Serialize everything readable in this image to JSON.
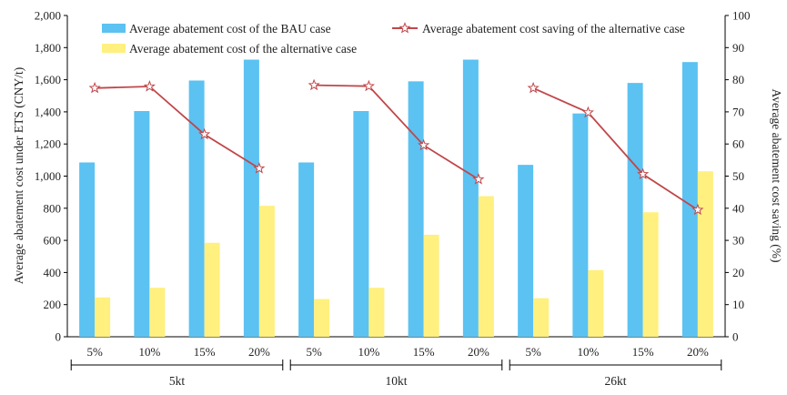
{
  "chart_data": {
    "type": "bar",
    "title": "",
    "ylabel": "Average abatement cost under ETS (CNY/t)",
    "y2label": "Average abatement cost saving (%)",
    "ylim": [
      0,
      2000
    ],
    "y2lim": [
      0,
      100
    ],
    "yticks": [
      "0",
      "200",
      "400",
      "600",
      "800",
      "1,000",
      "1,200",
      "1,400",
      "1,600",
      "1,800",
      "2,000"
    ],
    "y2ticks": [
      "0",
      "10",
      "20",
      "30",
      "40",
      "50",
      "60",
      "70",
      "80",
      "90",
      "100"
    ],
    "legend_position": "top",
    "groups": [
      {
        "label": "5kt",
        "categories": [
          "5%",
          "10%",
          "15%",
          "20%"
        ]
      },
      {
        "label": "10kt",
        "categories": [
          "5%",
          "10%",
          "15%",
          "20%"
        ]
      },
      {
        "label": "26kt",
        "categories": [
          "5%",
          "10%",
          "15%",
          "20%"
        ]
      }
    ],
    "series": [
      {
        "name": "Average abatement cost of the BAU case",
        "kind": "bar",
        "axis": "left",
        "color": "#5BC2F2",
        "values": [
          1085,
          1405,
          1595,
          1725,
          1085,
          1405,
          1590,
          1725,
          1070,
          1390,
          1580,
          1710
        ]
      },
      {
        "name": "Average abatement cost of the alternative case",
        "kind": "bar",
        "axis": "left",
        "color": "#FFF07F",
        "values": [
          245,
          305,
          585,
          815,
          235,
          305,
          635,
          875,
          240,
          415,
          775,
          1030
        ]
      },
      {
        "name": "Average abatement cost saving of the alternative case",
        "kind": "line",
        "axis": "right",
        "color": "#C0474A",
        "values": [
          77.4,
          77.9,
          63.0,
          52.4,
          78.3,
          78.0,
          59.6,
          49.0,
          77.4,
          69.8,
          50.6,
          39.5
        ]
      }
    ]
  }
}
